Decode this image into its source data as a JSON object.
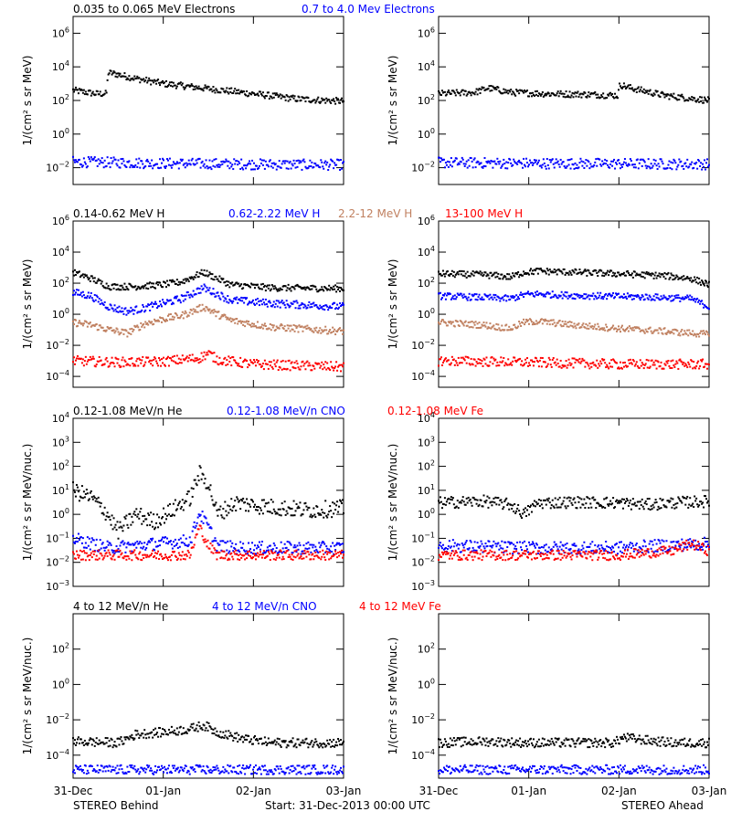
{
  "colors": {
    "black": "#000000",
    "blue": "#0000ff",
    "tan": "#c08060",
    "red": "#ff0000"
  },
  "footer": {
    "left": "STEREO Behind",
    "center": "Start: 31-Dec-2013 00:00 UTC",
    "right": "STEREO Ahead"
  },
  "x_ticks": [
    "31-Dec",
    "01-Jan",
    "02-Jan",
    "03-Jan"
  ],
  "chart_data": [
    {
      "type": "scatter",
      "title": "",
      "ylabel": "1/(cm² s sr MeV)",
      "scale": "log",
      "ylim": [
        0.001,
        10000000
      ],
      "yticks": [
        {
          "v": 1000000,
          "t": "10^6"
        },
        {
          "v": 10000,
          "t": "10^4"
        },
        {
          "v": 100,
          "t": "10^2"
        },
        {
          "v": 1,
          "t": "10^0"
        },
        {
          "v": 0.01,
          "t": "10^-2"
        }
      ],
      "xlim": [
        0,
        3
      ],
      "legend": [
        {
          "label": "0.035 to 0.065 MeV Electrons",
          "color": "#000000"
        },
        {
          "label": "0.7 to 4.0 Mev Electrons",
          "color": "#0000ff"
        }
      ],
      "panels": [
        {
          "spacecraft": "STEREO Behind",
          "series": [
            {
              "name": "0.035 to 0.065 MeV Electrons",
              "color": "#000000",
              "scatter": 1.1,
              "x": [
                0,
                0.25,
                0.37,
                0.39,
                0.45,
                0.7,
                1.0,
                1.5,
                2.0,
                2.5,
                3.0
              ],
              "y": [
                400,
                250,
                250,
                4500,
                4000,
                2000,
                1000,
                500,
                250,
                120,
                90
              ]
            },
            {
              "name": "0.7 to 4.0 Mev Electrons",
              "color": "#0000ff",
              "scatter": 1.8,
              "x": [
                0,
                0.5,
                1.0,
                1.5,
                2.0,
                2.5,
                3.0
              ],
              "y": [
                0.022,
                0.02,
                0.018,
                0.017,
                0.016,
                0.015,
                0.015
              ]
            }
          ]
        },
        {
          "spacecraft": "STEREO Ahead",
          "series": [
            {
              "name": "0.035 to 0.065 MeV Electrons",
              "color": "#000000",
              "scatter": 1.1,
              "x": [
                0,
                0.4,
                0.55,
                0.8,
                1.2,
                1.6,
                1.99,
                2.01,
                2.1,
                2.5,
                3.0
              ],
              "y": [
                250,
                300,
                550,
                300,
                250,
                230,
                200,
                900,
                600,
                200,
                100
              ]
            },
            {
              "name": "0.7 to 4.0 Mev Electrons",
              "color": "#0000ff",
              "scatter": 1.8,
              "x": [
                0,
                1.0,
                2.0,
                3.0
              ],
              "y": [
                0.02,
                0.018,
                0.017,
                0.016
              ]
            }
          ]
        }
      ]
    },
    {
      "type": "scatter",
      "title": "",
      "ylabel": "1/(cm² s sr MeV)",
      "scale": "log",
      "ylim": [
        2e-05,
        1000000
      ],
      "yticks": [
        {
          "v": 1000000,
          "t": "10^6"
        },
        {
          "v": 10000,
          "t": "10^4"
        },
        {
          "v": 100,
          "t": "10^2"
        },
        {
          "v": 1,
          "t": "10^0"
        },
        {
          "v": 0.01,
          "t": "10^-2"
        },
        {
          "v": 0.0001,
          "t": "10^-4"
        }
      ],
      "xlim": [
        0,
        3
      ],
      "legend": [
        {
          "label": "0.14-0.62 MeV H",
          "color": "#000000"
        },
        {
          "label": "0.62-2.22 MeV H",
          "color": "#0000ff"
        },
        {
          "label": "2.2-12 MeV H",
          "color": "#c08060"
        },
        {
          "label": "13-100 MeV H",
          "color": "#ff0000"
        }
      ],
      "panels": [
        {
          "spacecraft": "STEREO Behind",
          "series": [
            {
              "name": "0.14-0.62 MeV H",
              "color": "#000000",
              "scatter": 1.2,
              "x": [
                0,
                0.2,
                0.4,
                0.7,
                1.0,
                1.2,
                1.45,
                1.6,
                1.75,
                2.2,
                3.0
              ],
              "y": [
                500,
                200,
                60,
                60,
                80,
                120,
                500,
                200,
                80,
                50,
                45
              ]
            },
            {
              "name": "0.62-2.22 MeV H",
              "color": "#0000ff",
              "scatter": 1.4,
              "x": [
                0,
                0.2,
                0.4,
                0.6,
                0.8,
                1.0,
                1.2,
                1.45,
                1.6,
                1.75,
                2.2,
                3.0
              ],
              "y": [
                25,
                15,
                3,
                1.5,
                2.5,
                5,
                10,
                50,
                20,
                8,
                5,
                3
              ]
            },
            {
              "name": "2.2-12 MeV H",
              "color": "#c08060",
              "scatter": 1.3,
              "x": [
                0,
                0.2,
                0.4,
                0.6,
                0.8,
                1.0,
                1.2,
                1.45,
                1.6,
                1.75,
                2.2,
                3.0
              ],
              "y": [
                0.3,
                0.2,
                0.1,
                0.06,
                0.25,
                0.5,
                0.8,
                3,
                1,
                0.4,
                0.15,
                0.08
              ]
            },
            {
              "name": "13-100 MeV H",
              "color": "#ff0000",
              "scatter": 1.8,
              "x": [
                0,
                0.5,
                1.0,
                1.4,
                1.5,
                1.6,
                2.0,
                3.0
              ],
              "y": [
                0.001,
                0.0008,
                0.0009,
                0.0015,
                0.003,
                0.0012,
                0.0006,
                0.0004
              ]
            }
          ]
        },
        {
          "spacecraft": "STEREO Ahead",
          "series": [
            {
              "name": "0.14-0.62 MeV H",
              "color": "#000000",
              "scatter": 1.2,
              "x": [
                0,
                0.5,
                0.8,
                0.95,
                1.1,
                1.5,
                2.0,
                2.5,
                2.8,
                3.0
              ],
              "y": [
                400,
                350,
                250,
                500,
                600,
                500,
                400,
                300,
                200,
                80
              ]
            },
            {
              "name": "0.62-2.22 MeV H",
              "color": "#0000ff",
              "scatter": 1.2,
              "x": [
                0,
                0.5,
                0.8,
                0.95,
                1.1,
                1.5,
                2.0,
                2.5,
                2.8,
                3.0
              ],
              "y": [
                15,
                12,
                10,
                18,
                20,
                16,
                14,
                12,
                10,
                3
              ]
            },
            {
              "name": "2.2-12 MeV H",
              "color": "#c08060",
              "scatter": 1.2,
              "x": [
                0,
                0.5,
                0.8,
                0.95,
                1.1,
                1.5,
                2.0,
                2.5,
                3.0
              ],
              "y": [
                0.3,
                0.2,
                0.12,
                0.3,
                0.35,
                0.2,
                0.12,
                0.08,
                0.05
              ]
            },
            {
              "name": "13-100 MeV H",
              "color": "#ff0000",
              "scatter": 1.8,
              "x": [
                0,
                0.5,
                1.0,
                1.5,
                2.0,
                2.5,
                3.0
              ],
              "y": [
                0.001,
                0.0009,
                0.0008,
                0.0007,
                0.0006,
                0.0006,
                0.0006
              ]
            }
          ]
        }
      ]
    },
    {
      "type": "scatter",
      "title": "",
      "ylabel": "1/(cm² s sr MeV/nuc.)",
      "scale": "log",
      "ylim": [
        0.001,
        10000
      ],
      "yticks": [
        {
          "v": 10000,
          "t": "10^4"
        },
        {
          "v": 1000,
          "t": "10^3"
        },
        {
          "v": 100,
          "t": "10^2"
        },
        {
          "v": 10,
          "t": "10^1"
        },
        {
          "v": 1,
          "t": "10^0"
        },
        {
          "v": 0.1,
          "t": "10^-1"
        },
        {
          "v": 0.01,
          "t": "10^-2"
        },
        {
          "v": 0.001,
          "t": "10^-3"
        }
      ],
      "xlim": [
        0,
        3
      ],
      "legend": [
        {
          "label": "0.12-1.08 MeV/n He",
          "color": "#000000"
        },
        {
          "label": "0.12-1.08 MeV/n CNO",
          "color": "#0000ff"
        },
        {
          "label": "0.12-1.08 MeV Fe",
          "color": "#ff0000"
        }
      ],
      "panels": [
        {
          "spacecraft": "STEREO Behind",
          "series": [
            {
              "name": "0.12-1.08 MeV/n He",
              "color": "#000000",
              "scatter": 2.0,
              "x": [
                0,
                0.2,
                0.35,
                0.5,
                0.7,
                0.9,
                1.1,
                1.3,
                1.4,
                1.5,
                1.6,
                1.8,
                2.2,
                2.6,
                3.0
              ],
              "y": [
                10,
                5,
                1.5,
                0.2,
                1,
                0.5,
                1.5,
                5,
                50,
                20,
                1,
                3,
                2,
                1.5,
                1.8
              ]
            },
            {
              "name": "0.12-1.08 MeV/n CNO",
              "color": "#0000ff",
              "scatter": 1.5,
              "x": [
                0,
                0.2,
                0.4,
                1.3,
                1.4,
                1.5,
                1.6,
                1.8,
                3.0
              ],
              "y": [
                0.1,
                0.06,
                0.04,
                0.08,
                1.2,
                0.3,
                0.05,
                0.04,
                0.04
              ]
            },
            {
              "name": "0.12-1.08 MeV Fe",
              "color": "#ff0000",
              "scatter": 1.2,
              "x": [
                0,
                1.3,
                1.4,
                1.5,
                1.6,
                3.0
              ],
              "y": [
                0.02,
                0.02,
                0.3,
                0.05,
                0.02,
                0.02
              ]
            }
          ]
        },
        {
          "spacecraft": "STEREO Ahead",
          "series": [
            {
              "name": "0.12-1.08 MeV/n He",
              "color": "#000000",
              "scatter": 1.4,
              "x": [
                0,
                0.5,
                0.8,
                0.95,
                1.1,
                1.5,
                2.0,
                2.3,
                2.6,
                3.0
              ],
              "y": [
                3,
                3.5,
                2.5,
                1,
                3,
                3.2,
                3,
                2.5,
                3,
                3.5
              ]
            },
            {
              "name": "0.12-1.08 MeV/n CNO",
              "color": "#0000ff",
              "scatter": 1.5,
              "x": [
                0,
                1.0,
                2.0,
                2.5,
                3.0
              ],
              "y": [
                0.05,
                0.04,
                0.04,
                0.05,
                0.06
              ]
            },
            {
              "name": "0.12-1.08 MeV Fe",
              "color": "#ff0000",
              "scatter": 1.2,
              "x": [
                0,
                2.0,
                2.6,
                2.8,
                3.0
              ],
              "y": [
                0.02,
                0.02,
                0.03,
                0.06,
                0.03
              ]
            }
          ]
        }
      ]
    },
    {
      "type": "scatter",
      "title": "",
      "ylabel": "1/(cm² s sr MeV/nuc.)",
      "scale": "log",
      "ylim": [
        5e-06,
        10000
      ],
      "yticks": [
        {
          "v": 100,
          "t": "10^2"
        },
        {
          "v": 1,
          "t": "10^0"
        },
        {
          "v": 0.01,
          "t": "10^-2"
        },
        {
          "v": 0.0001,
          "t": "10^-4"
        }
      ],
      "xlim": [
        0,
        3
      ],
      "legend": [
        {
          "label": "4 to 12 MeV/n He",
          "color": "#000000"
        },
        {
          "label": "4 to 12 MeV/n CNO",
          "color": "#0000ff"
        },
        {
          "label": "4 to 12 MeV Fe",
          "color": "#ff0000"
        }
      ],
      "panels": [
        {
          "spacecraft": "STEREO Behind",
          "series": [
            {
              "name": "4 to 12 MeV/n He",
              "color": "#000000",
              "scatter": 1.5,
              "x": [
                0,
                0.5,
                0.7,
                1.0,
                1.3,
                1.45,
                1.6,
                1.9,
                2.2,
                3.0
              ],
              "y": [
                0.0006,
                0.0005,
                0.0015,
                0.002,
                0.003,
                0.005,
                0.002,
                0.0008,
                0.0005,
                0.0005
              ]
            },
            {
              "name": "4 to 12 MeV/n CNO",
              "color": "#0000ff",
              "scatter": 1.5,
              "x": [
                0,
                1.0,
                2.0,
                3.0
              ],
              "y": [
                1.5e-05,
                1.5e-05,
                1.5e-05,
                1.5e-05
              ]
            }
          ]
        },
        {
          "spacecraft": "STEREO Ahead",
          "series": [
            {
              "name": "4 to 12 MeV/n He",
              "color": "#000000",
              "scatter": 1.5,
              "x": [
                0,
                0.5,
                1.0,
                1.5,
                1.95,
                2.05,
                2.3,
                2.6,
                3.0
              ],
              "y": [
                0.0005,
                0.0006,
                0.0005,
                0.0005,
                0.0005,
                0.001,
                0.0007,
                0.0005,
                0.0005
              ]
            },
            {
              "name": "4 to 12 MeV/n CNO",
              "color": "#0000ff",
              "scatter": 1.5,
              "x": [
                0,
                1.0,
                2.0,
                3.0
              ],
              "y": [
                1.5e-05,
                1.5e-05,
                1.5e-05,
                1.5e-05
              ]
            }
          ]
        }
      ]
    }
  ]
}
